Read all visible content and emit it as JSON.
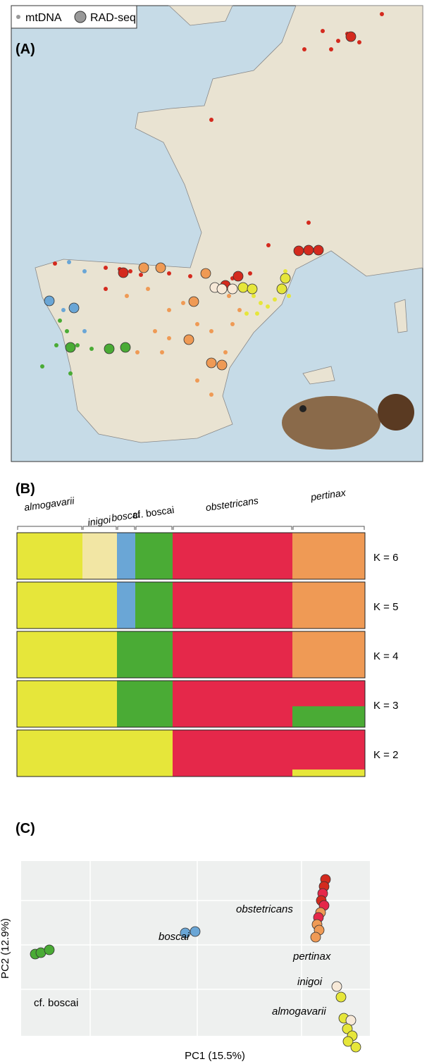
{
  "panel_a": {
    "label": "(A)",
    "legend": [
      "mtDNA",
      "RAD-seq"
    ]
  },
  "panel_b": {
    "label": "(B)",
    "groups": [
      "almogavarii",
      "inigoi",
      "boscai",
      "cf. boscai",
      "obstetricans",
      "pertinax"
    ],
    "rows": [
      "K = 6",
      "K = 5",
      "K = 4",
      "K = 3",
      "K = 2"
    ]
  },
  "panel_c": {
    "label": "(C)",
    "x_axis": "PC1 (15.5%)",
    "y_axis": "PC2 (12.9%)",
    "clusters": [
      "obstetricans",
      "pertinax",
      "boscai",
      "cf. boscai",
      "inigoi",
      "almogavarii"
    ]
  }
}
